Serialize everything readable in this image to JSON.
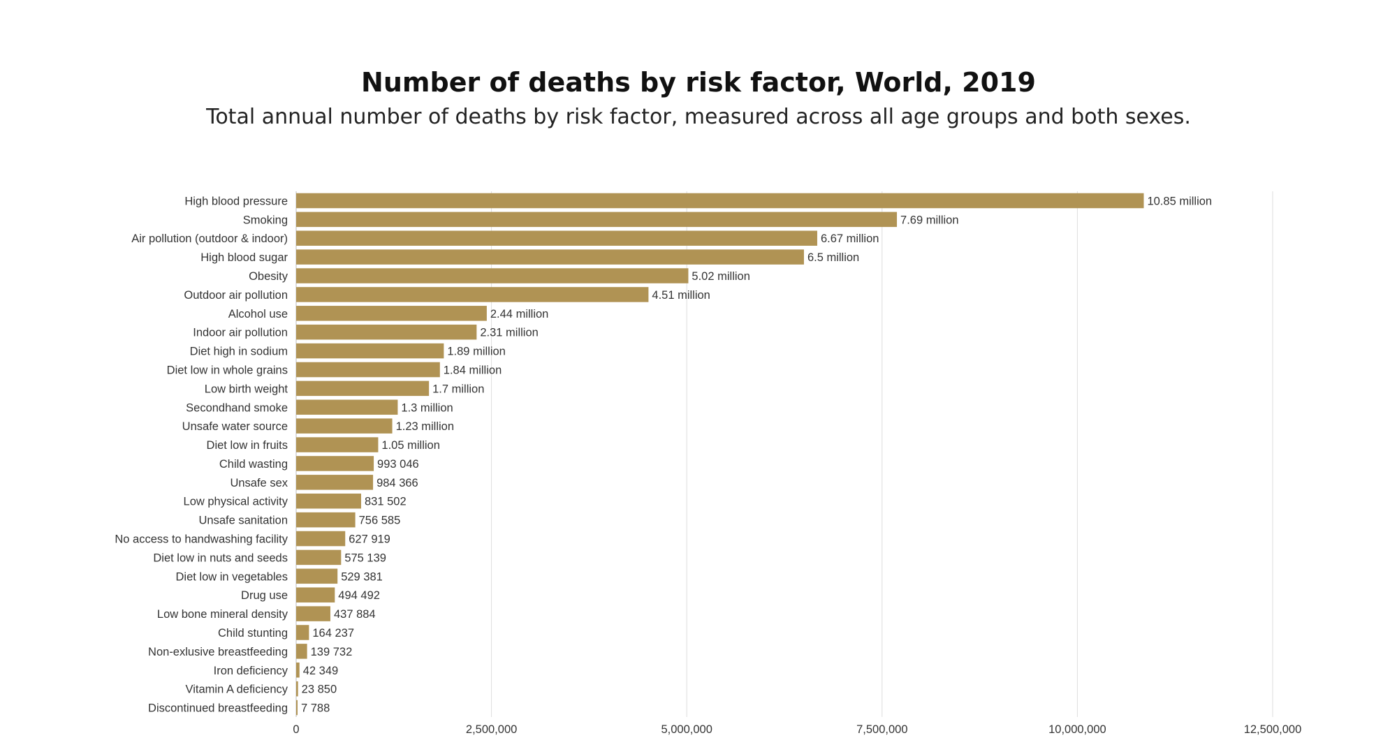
{
  "chart_data": {
    "type": "bar",
    "orientation": "horizontal",
    "title": "Number of deaths by risk factor, World, 2019",
    "subtitle": "Total annual number of deaths by risk factor, measured across all age groups and both sexes.",
    "xlabel": "",
    "ylabel": "",
    "xlim": [
      0,
      12500000
    ],
    "x_ticks": [
      0,
      2500000,
      5000000,
      7500000,
      10000000,
      12500000
    ],
    "x_tick_labels": [
      "0",
      "2,500,000",
      "5,000,000",
      "7,500,000",
      "10,000,000",
      "12,500,000"
    ],
    "grid": true,
    "bar_color": "#b09354",
    "categories": [
      "High blood pressure",
      "Smoking",
      "Air pollution (outdoor & indoor)",
      "High blood sugar",
      "Obesity",
      "Outdoor air pollution",
      "Alcohol use",
      "Indoor air pollution",
      "Diet high in sodium",
      "Diet low in whole grains",
      "Low birth weight",
      "Secondhand smoke",
      "Unsafe water source",
      "Diet low in fruits",
      "Child wasting",
      "Unsafe sex",
      "Low physical activity",
      "Unsafe sanitation",
      "No access to handwashing facility",
      "Diet low in nuts and seeds",
      "Diet low in vegetables",
      "Drug use",
      "Low bone mineral density",
      "Child stunting",
      "Non-exlusive breastfeeding",
      "Iron deficiency",
      "Vitamin A deficiency",
      "Discontinued breastfeeding"
    ],
    "values": [
      10850000,
      7690000,
      6670000,
      6500000,
      5020000,
      4510000,
      2440000,
      2310000,
      1890000,
      1840000,
      1700000,
      1300000,
      1230000,
      1050000,
      993046,
      984366,
      831502,
      756585,
      627919,
      575139,
      529381,
      494492,
      437884,
      164237,
      139732,
      42349,
      23850,
      7788
    ],
    "value_labels": [
      "10.85 million",
      "7.69 million",
      "6.67 million",
      "6.5 million",
      "5.02 million",
      "4.51 million",
      "2.44 million",
      "2.31 million",
      "1.89 million",
      "1.84 million",
      "1.7 million",
      "1.3 million",
      "1.23 million",
      "1.05 million",
      "993 046",
      "984 366",
      "831 502",
      "756 585",
      "627 919",
      "575 139",
      "529 381",
      "494 492",
      "437 884",
      "164 237",
      "139 732",
      "42 349",
      "23 850",
      "7 788"
    ]
  }
}
